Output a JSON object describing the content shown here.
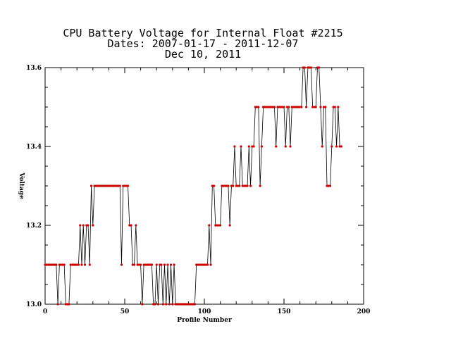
{
  "chart_data": {
    "type": "line",
    "title_lines": [
      "CPU Battery Voltage for Internal Float #2215",
      "Dates:  2007-01-17 -  2011-12-07",
      "Dec 10, 2011"
    ],
    "xlabel": "Profile Number",
    "ylabel": "Voltage",
    "xlim": [
      0,
      200
    ],
    "ylim": [
      13.0,
      13.6
    ],
    "x_ticks": [
      "0",
      "50",
      "100",
      "150",
      "200"
    ],
    "y_ticks": [
      "13.0",
      "13.2",
      "13.4",
      "13.6"
    ],
    "line_color": "#000000",
    "marker_color": "#cc0000",
    "series": [
      {
        "values": [
          13.1,
          13.1,
          13.1,
          13.1,
          13.1,
          13.1,
          13.1,
          13.1,
          13.0,
          13.1,
          13.1,
          13.1,
          13.1,
          13.0,
          13.0,
          13.0,
          13.1,
          13.1,
          13.1,
          13.1,
          13.1,
          13.1,
          13.2,
          13.1,
          13.2,
          13.1,
          13.2,
          13.2,
          13.1,
          13.3,
          13.2,
          13.3,
          13.3,
          13.3,
          13.3,
          13.3,
          13.3,
          13.3,
          13.3,
          13.3,
          13.3,
          13.3,
          13.3,
          13.3,
          13.3,
          13.3,
          13.3,
          13.3,
          13.1,
          13.3,
          13.3,
          13.3,
          13.3,
          13.2,
          13.2,
          13.1,
          13.1,
          13.2,
          13.1,
          13.1,
          13.1,
          13.0,
          13.1,
          13.1,
          13.1,
          13.1,
          13.1,
          13.1,
          13.0,
          13.0,
          13.1,
          13.0,
          13.1,
          13.1,
          13.0,
          13.1,
          13.0,
          13.1,
          13.0,
          13.1,
          13.0,
          13.1,
          13.0,
          13.0,
          13.0,
          13.0,
          13.0,
          13.0,
          13.0,
          13.0,
          13.0,
          13.0,
          13.0,
          13.0,
          13.0,
          13.1,
          13.1,
          13.1,
          13.1,
          13.1,
          13.1,
          13.1,
          13.1,
          13.2,
          13.1,
          13.3,
          13.3,
          13.2,
          13.2,
          13.2,
          13.2,
          13.3,
          13.3,
          13.3,
          13.3,
          13.3,
          13.2,
          13.3,
          13.3,
          13.4,
          13.3,
          13.3,
          13.3,
          13.4,
          13.3,
          13.3,
          13.3,
          13.3,
          13.4,
          13.3,
          13.4,
          13.4,
          13.5,
          13.5,
          13.5,
          13.3,
          13.4,
          13.5,
          13.5,
          13.5,
          13.5,
          13.5,
          13.5,
          13.5,
          13.5,
          13.4,
          13.5,
          13.5,
          13.5,
          13.5,
          13.5,
          13.4,
          13.5,
          13.5,
          13.4,
          13.5,
          13.5,
          13.5,
          13.5,
          13.5,
          13.5,
          13.5,
          13.6,
          13.6,
          13.5,
          13.6,
          13.6,
          13.6,
          13.5,
          13.5,
          13.5,
          13.6,
          13.6,
          13.5,
          13.4,
          13.5,
          13.5,
          13.3,
          13.3,
          13.3,
          13.4,
          13.5,
          13.5,
          13.4,
          13.5,
          13.4,
          13.4
        ]
      }
    ]
  }
}
